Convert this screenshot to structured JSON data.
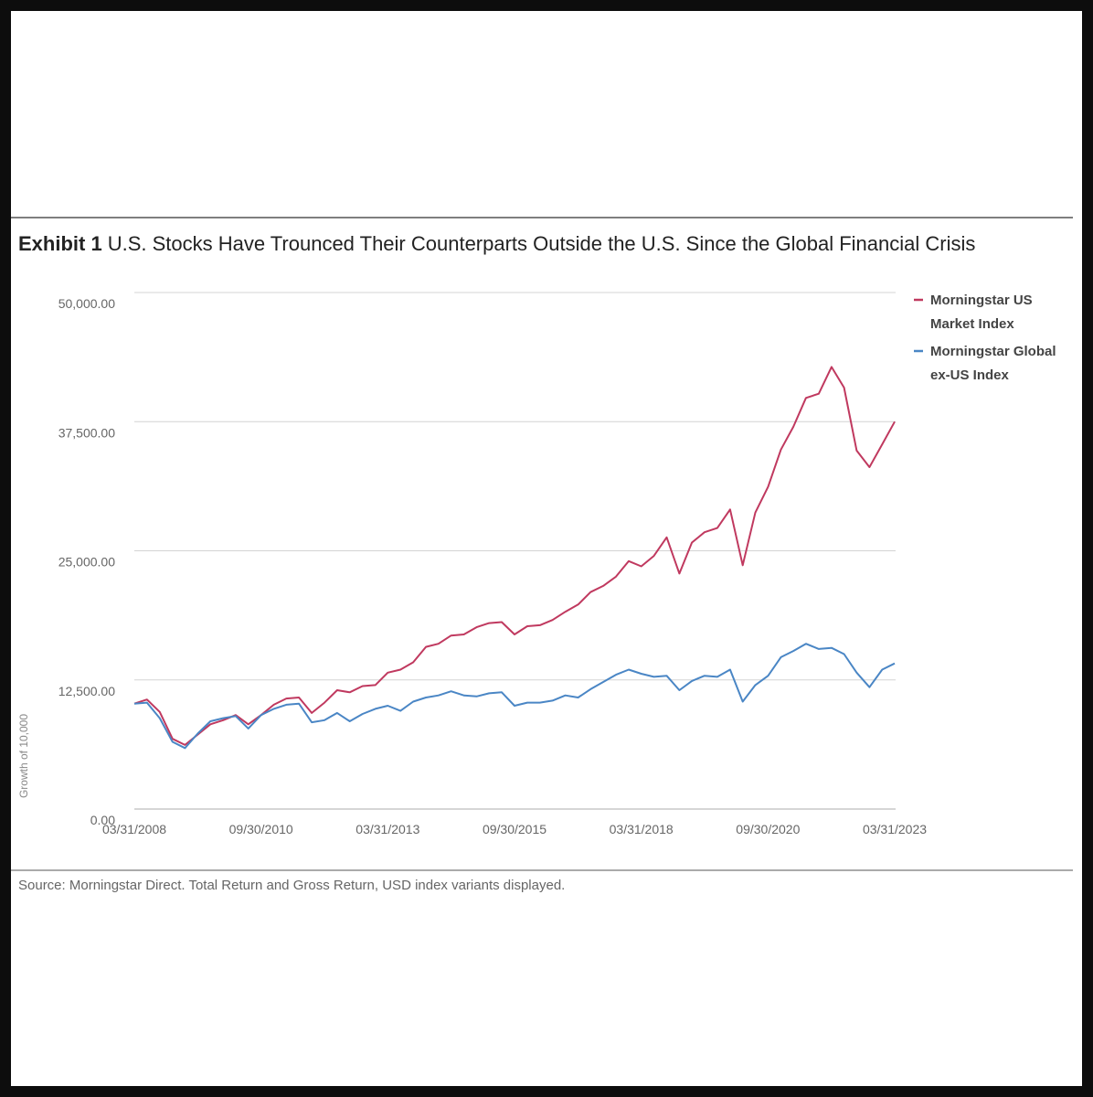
{
  "exhibit": {
    "label": "Exhibit 1",
    "title": "U.S. Stocks Have Trounced Their Counterparts Outside the U.S. Since the Global Financial Crisis"
  },
  "source": "Source: Morningstar Direct. Total Return and Gross Return, USD index variants displayed.",
  "chart_data": {
    "type": "line",
    "ylabel": "Growth of 10,000",
    "xlabel": "",
    "ylim": [
      0,
      50000
    ],
    "yticks": [
      {
        "value": 0,
        "label": "0.00"
      },
      {
        "value": 12500,
        "label": "12,500.00"
      },
      {
        "value": 25000,
        "label": "25,000.00"
      },
      {
        "value": 37500,
        "label": "37,500.00"
      },
      {
        "value": 50000,
        "label": "50,000.00"
      }
    ],
    "xlim": [
      "2008-03-31",
      "2023-03-31"
    ],
    "xticks": [
      "03/31/2008",
      "09/30/2010",
      "03/31/2013",
      "09/30/2015",
      "03/31/2018",
      "09/30/2020",
      "03/31/2023"
    ],
    "grid": true,
    "legend_position": "top-right",
    "series": [
      {
        "name": "Morningstar US Market Index",
        "color": "#c0395f",
        "points": [
          [
            "2008-03-31",
            10200
          ],
          [
            "2008-06-30",
            10600
          ],
          [
            "2008-09-30",
            9400
          ],
          [
            "2008-12-31",
            6800
          ],
          [
            "2009-03-31",
            6200
          ],
          [
            "2009-06-30",
            7200
          ],
          [
            "2009-09-30",
            8200
          ],
          [
            "2009-12-31",
            8600
          ],
          [
            "2010-03-31",
            9100
          ],
          [
            "2010-06-30",
            8200
          ],
          [
            "2010-09-30",
            9100
          ],
          [
            "2010-12-31",
            10100
          ],
          [
            "2011-03-31",
            10700
          ],
          [
            "2011-06-30",
            10800
          ],
          [
            "2011-09-30",
            9300
          ],
          [
            "2011-12-31",
            10300
          ],
          [
            "2012-03-31",
            11500
          ],
          [
            "2012-06-30",
            11300
          ],
          [
            "2012-09-30",
            11900
          ],
          [
            "2012-12-31",
            12000
          ],
          [
            "2013-03-31",
            13200
          ],
          [
            "2013-06-30",
            13500
          ],
          [
            "2013-09-30",
            14200
          ],
          [
            "2013-12-31",
            15700
          ],
          [
            "2014-03-31",
            16000
          ],
          [
            "2014-06-30",
            16800
          ],
          [
            "2014-09-30",
            16900
          ],
          [
            "2014-12-31",
            17600
          ],
          [
            "2015-03-31",
            18000
          ],
          [
            "2015-06-30",
            18100
          ],
          [
            "2015-09-30",
            16900
          ],
          [
            "2015-12-31",
            17700
          ],
          [
            "2016-03-31",
            17800
          ],
          [
            "2016-06-30",
            18300
          ],
          [
            "2016-09-30",
            19100
          ],
          [
            "2016-12-31",
            19800
          ],
          [
            "2017-03-31",
            21000
          ],
          [
            "2017-06-30",
            21600
          ],
          [
            "2017-09-30",
            22500
          ],
          [
            "2017-12-31",
            24000
          ],
          [
            "2018-03-31",
            23500
          ],
          [
            "2018-06-30",
            24500
          ],
          [
            "2018-09-30",
            26300
          ],
          [
            "2018-12-31",
            22800
          ],
          [
            "2019-03-31",
            25800
          ],
          [
            "2019-06-30",
            26800
          ],
          [
            "2019-09-30",
            27200
          ],
          [
            "2019-12-31",
            29000
          ],
          [
            "2020-03-31",
            23600
          ],
          [
            "2020-06-30",
            28700
          ],
          [
            "2020-09-30",
            31200
          ],
          [
            "2020-12-31",
            34800
          ],
          [
            "2021-03-31",
            37000
          ],
          [
            "2021-06-30",
            39800
          ],
          [
            "2021-09-30",
            40200
          ],
          [
            "2021-12-31",
            42800
          ],
          [
            "2022-03-31",
            40800
          ],
          [
            "2022-06-30",
            34700
          ],
          [
            "2022-09-30",
            33100
          ],
          [
            "2022-12-31",
            35300
          ],
          [
            "2023-03-31",
            37500
          ]
        ]
      },
      {
        "name": "Morningstar Global ex-US Index",
        "color": "#4a86c5",
        "points": [
          [
            "2008-03-31",
            10200
          ],
          [
            "2008-06-30",
            10300
          ],
          [
            "2008-09-30",
            8800
          ],
          [
            "2008-12-31",
            6500
          ],
          [
            "2009-03-31",
            5900
          ],
          [
            "2009-06-30",
            7300
          ],
          [
            "2009-09-30",
            8500
          ],
          [
            "2009-12-31",
            8800
          ],
          [
            "2010-03-31",
            9000
          ],
          [
            "2010-06-30",
            7800
          ],
          [
            "2010-09-30",
            9100
          ],
          [
            "2010-12-31",
            9700
          ],
          [
            "2011-03-31",
            10100
          ],
          [
            "2011-06-30",
            10200
          ],
          [
            "2011-09-30",
            8400
          ],
          [
            "2011-12-31",
            8600
          ],
          [
            "2012-03-31",
            9300
          ],
          [
            "2012-06-30",
            8500
          ],
          [
            "2012-09-30",
            9200
          ],
          [
            "2012-12-31",
            9700
          ],
          [
            "2013-03-31",
            10000
          ],
          [
            "2013-06-30",
            9500
          ],
          [
            "2013-09-30",
            10400
          ],
          [
            "2013-12-31",
            10800
          ],
          [
            "2014-03-31",
            11000
          ],
          [
            "2014-06-30",
            11400
          ],
          [
            "2014-09-30",
            11000
          ],
          [
            "2014-12-31",
            10900
          ],
          [
            "2015-03-31",
            11200
          ],
          [
            "2015-06-30",
            11300
          ],
          [
            "2015-09-30",
            10000
          ],
          [
            "2015-12-31",
            10300
          ],
          [
            "2016-03-31",
            10300
          ],
          [
            "2016-06-30",
            10500
          ],
          [
            "2016-09-30",
            11000
          ],
          [
            "2016-12-31",
            10800
          ],
          [
            "2017-03-31",
            11600
          ],
          [
            "2017-06-30",
            12300
          ],
          [
            "2017-09-30",
            13000
          ],
          [
            "2017-12-31",
            13500
          ],
          [
            "2018-03-31",
            13100
          ],
          [
            "2018-06-30",
            12800
          ],
          [
            "2018-09-30",
            12900
          ],
          [
            "2018-12-31",
            11500
          ],
          [
            "2019-03-31",
            12400
          ],
          [
            "2019-06-30",
            12900
          ],
          [
            "2019-09-30",
            12800
          ],
          [
            "2019-12-31",
            13500
          ],
          [
            "2020-03-31",
            10400
          ],
          [
            "2020-06-30",
            12000
          ],
          [
            "2020-09-30",
            12900
          ],
          [
            "2020-12-31",
            14700
          ],
          [
            "2021-03-31",
            15300
          ],
          [
            "2021-06-30",
            16000
          ],
          [
            "2021-09-30",
            15500
          ],
          [
            "2021-12-31",
            15600
          ],
          [
            "2022-03-31",
            15000
          ],
          [
            "2022-06-30",
            13200
          ],
          [
            "2022-09-30",
            11800
          ],
          [
            "2022-12-31",
            13500
          ],
          [
            "2023-03-31",
            14100
          ]
        ]
      }
    ]
  }
}
